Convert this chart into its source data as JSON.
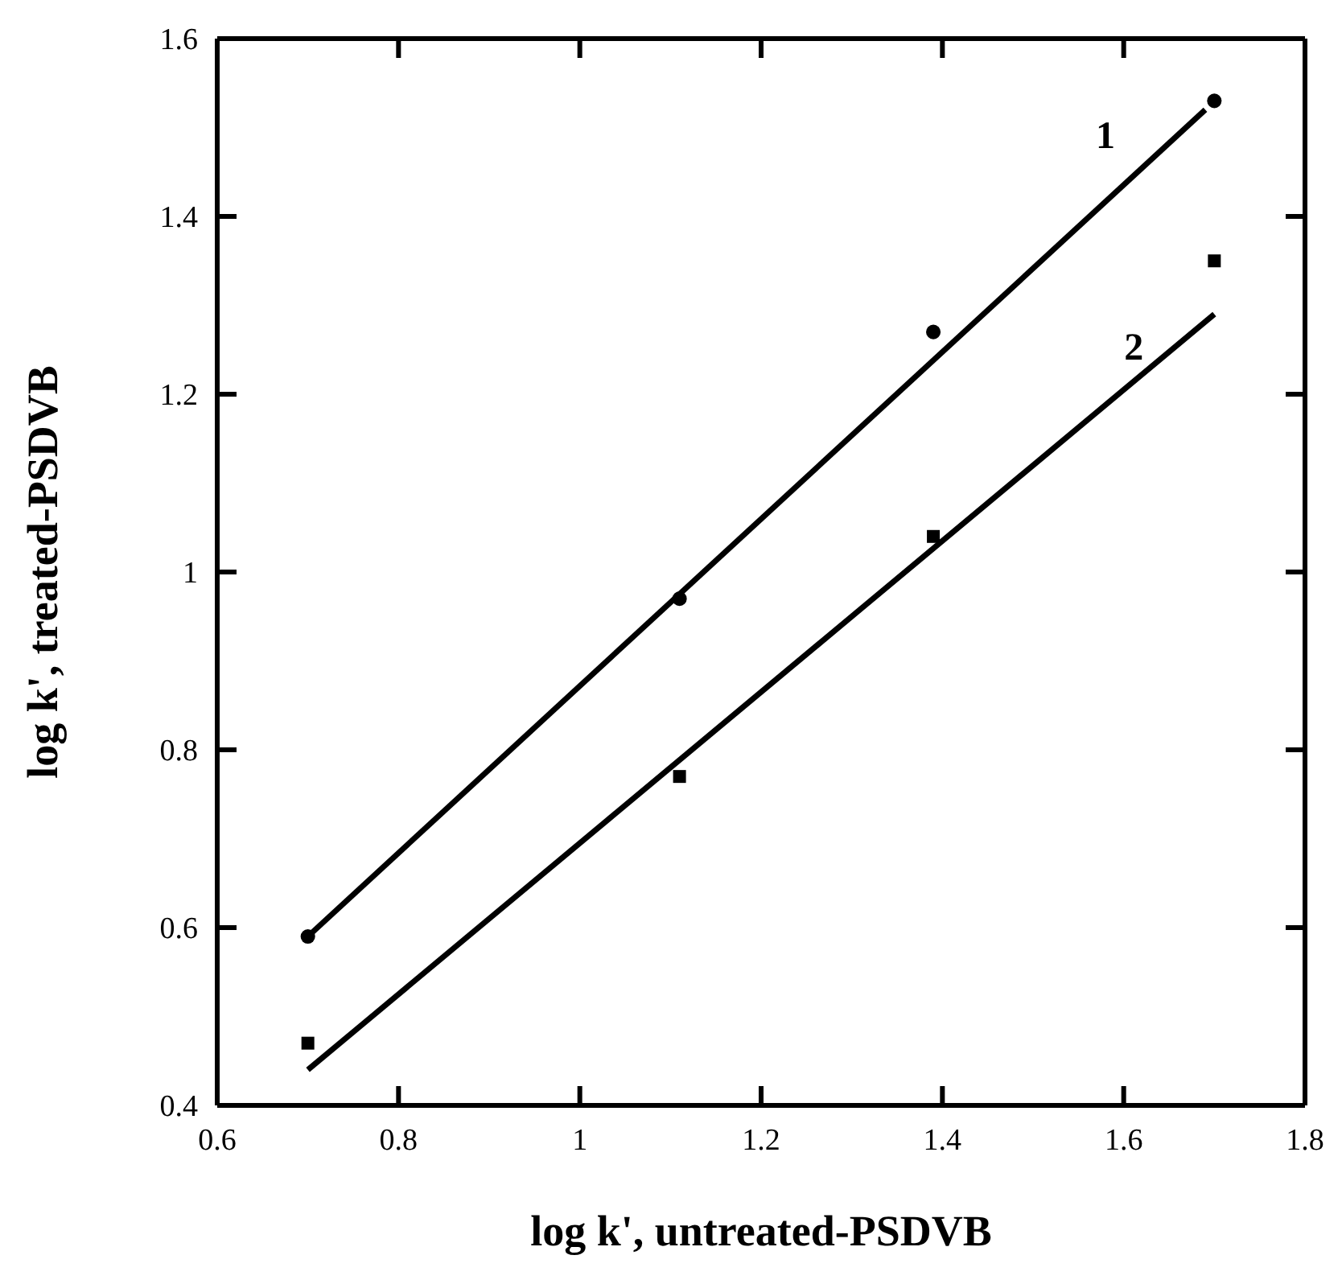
{
  "chart_data": {
    "type": "scatter",
    "xlabel": "log  k', untreated-PSDVB",
    "ylabel": "log  k', treated-PSDVB",
    "xlim": [
      0.6,
      1.8
    ],
    "xticks": [
      0.6,
      0.8,
      1,
      1.2,
      1.4,
      1.6,
      1.8
    ],
    "ylim": [
      0.4,
      1.6
    ],
    "yticks": [
      0.4,
      0.6,
      0.8,
      1,
      1.2,
      1.4,
      1.6
    ],
    "series": [
      {
        "type": "scatter",
        "marker": "circle",
        "color": "#000000",
        "x": [
          0.7,
          1.11,
          1.39,
          1.7
        ],
        "values": [
          0.59,
          0.97,
          1.27,
          1.53
        ]
      },
      {
        "type": "scatter",
        "marker": "square",
        "color": "#000000",
        "x": [
          0.7,
          1.11,
          1.39,
          1.7
        ],
        "values": [
          0.47,
          0.77,
          1.04,
          1.35
        ]
      },
      {
        "type": "line",
        "marker": "none",
        "line_style": "solid",
        "color": "#000000",
        "x": [
          0.7,
          1.69
        ],
        "values": [
          0.59,
          1.52
        ]
      },
      {
        "type": "line",
        "marker": "none",
        "line_style": "solid",
        "color": "#000000",
        "x": [
          0.7,
          1.7
        ],
        "values": [
          0.44,
          1.29
        ]
      }
    ],
    "annotations": [
      "1",
      "2"
    ]
  }
}
